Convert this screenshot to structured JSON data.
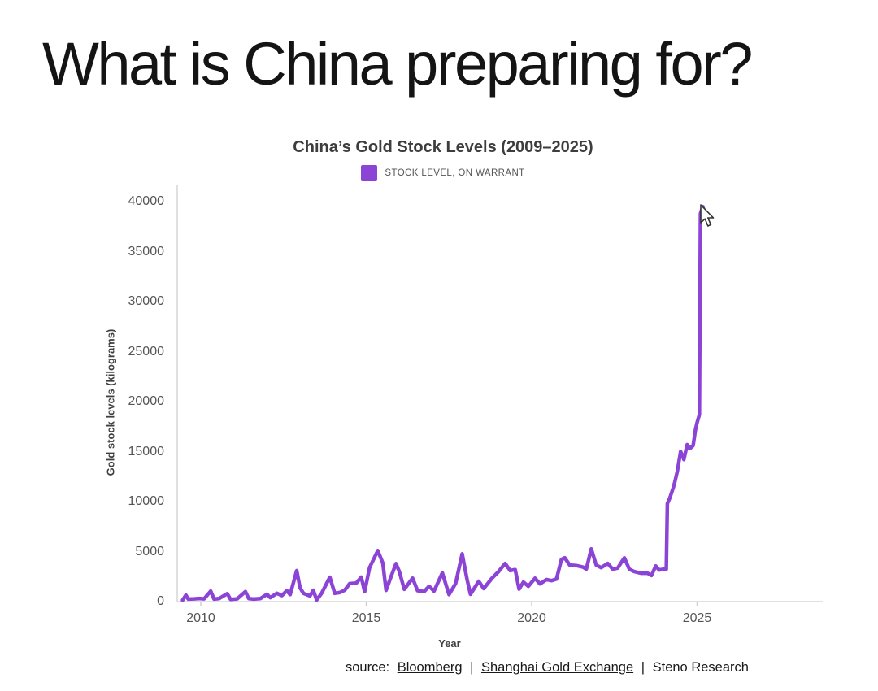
{
  "slide": {
    "title": "What is China preparing for?"
  },
  "chart": {
    "title": "China’s Gold Stock Levels (2009–2025)",
    "legend_label": "STOCK LEVEL, ON WARRANT",
    "x_axis_label": "Year",
    "y_axis_label": "Gold stock levels (kilograms)"
  },
  "chart_data": {
    "type": "line",
    "title": "China’s Gold Stock Levels (2009–2025)",
    "xlabel": "Year",
    "ylabel": "Gold stock levels (kilograms)",
    "series_name": "STOCK LEVEL, ON WARRANT",
    "line_color": "#8b44d6",
    "grid": false,
    "legend_position": "top-center",
    "x_ticks": [
      2010,
      2015,
      2020,
      2025
    ],
    "y_ticks": [
      0,
      5000,
      10000,
      15000,
      20000,
      25000,
      30000,
      35000,
      40000
    ],
    "xlim": [
      2009.3,
      2028.8
    ],
    "ylim": [
      0,
      40000
    ],
    "points": [
      [
        2009.45,
        150
      ],
      [
        2009.55,
        650
      ],
      [
        2009.62,
        250
      ],
      [
        2009.8,
        280
      ],
      [
        2009.95,
        320
      ],
      [
        2010.1,
        280
      ],
      [
        2010.3,
        1050
      ],
      [
        2010.4,
        250
      ],
      [
        2010.55,
        300
      ],
      [
        2010.8,
        800
      ],
      [
        2010.9,
        220
      ],
      [
        2011.1,
        280
      ],
      [
        2011.35,
        1000
      ],
      [
        2011.45,
        300
      ],
      [
        2011.6,
        250
      ],
      [
        2011.8,
        300
      ],
      [
        2012.0,
        730
      ],
      [
        2012.1,
        400
      ],
      [
        2012.3,
        830
      ],
      [
        2012.45,
        600
      ],
      [
        2012.6,
        1100
      ],
      [
        2012.7,
        700
      ],
      [
        2012.9,
        3100
      ],
      [
        2013.0,
        1380
      ],
      [
        2013.1,
        830
      ],
      [
        2013.3,
        570
      ],
      [
        2013.4,
        1140
      ],
      [
        2013.5,
        160
      ],
      [
        2013.65,
        830
      ],
      [
        2013.9,
        2440
      ],
      [
        2014.05,
        830
      ],
      [
        2014.2,
        900
      ],
      [
        2014.35,
        1140
      ],
      [
        2014.5,
        1800
      ],
      [
        2014.7,
        1850
      ],
      [
        2014.85,
        2450
      ],
      [
        2014.95,
        980
      ],
      [
        2015.1,
        3400
      ],
      [
        2015.35,
        5100
      ],
      [
        2015.5,
        3850
      ],
      [
        2015.6,
        1130
      ],
      [
        2015.75,
        2500
      ],
      [
        2015.9,
        3800
      ],
      [
        2016.0,
        3000
      ],
      [
        2016.15,
        1230
      ],
      [
        2016.4,
        2340
      ],
      [
        2016.55,
        1100
      ],
      [
        2016.75,
        1000
      ],
      [
        2016.9,
        1540
      ],
      [
        2017.05,
        1050
      ],
      [
        2017.3,
        2870
      ],
      [
        2017.5,
        700
      ],
      [
        2017.7,
        1800
      ],
      [
        2017.9,
        4770
      ],
      [
        2018.05,
        2180
      ],
      [
        2018.15,
        730
      ],
      [
        2018.4,
        2030
      ],
      [
        2018.55,
        1300
      ],
      [
        2018.8,
        2340
      ],
      [
        2019.0,
        3000
      ],
      [
        2019.2,
        3810
      ],
      [
        2019.35,
        3100
      ],
      [
        2019.5,
        3200
      ],
      [
        2019.62,
        1240
      ],
      [
        2019.75,
        1950
      ],
      [
        2019.9,
        1530
      ],
      [
        2020.1,
        2330
      ],
      [
        2020.25,
        1770
      ],
      [
        2020.45,
        2200
      ],
      [
        2020.6,
        2100
      ],
      [
        2020.75,
        2250
      ],
      [
        2020.9,
        4210
      ],
      [
        2021.0,
        4370
      ],
      [
        2021.15,
        3650
      ],
      [
        2021.35,
        3600
      ],
      [
        2021.55,
        3450
      ],
      [
        2021.65,
        3240
      ],
      [
        2021.8,
        5270
      ],
      [
        2021.95,
        3650
      ],
      [
        2022.1,
        3400
      ],
      [
        2022.3,
        3810
      ],
      [
        2022.45,
        3240
      ],
      [
        2022.6,
        3350
      ],
      [
        2022.8,
        4370
      ],
      [
        2022.95,
        3240
      ],
      [
        2023.1,
        3000
      ],
      [
        2023.3,
        2840
      ],
      [
        2023.5,
        2840
      ],
      [
        2023.62,
        2600
      ],
      [
        2023.75,
        3560
      ],
      [
        2023.85,
        3160
      ],
      [
        2024.0,
        3240
      ],
      [
        2024.07,
        3240
      ],
      [
        2024.1,
        9800
      ],
      [
        2024.18,
        10400
      ],
      [
        2024.28,
        11400
      ],
      [
        2024.33,
        12000
      ],
      [
        2024.4,
        13000
      ],
      [
        2024.5,
        15000
      ],
      [
        2024.6,
        14200
      ],
      [
        2024.7,
        15700
      ],
      [
        2024.78,
        15300
      ],
      [
        2024.88,
        15600
      ],
      [
        2024.95,
        17200
      ],
      [
        2025.0,
        17900
      ],
      [
        2025.07,
        18700
      ],
      [
        2025.1,
        38800
      ],
      [
        2025.17,
        39500
      ],
      [
        2025.2,
        39200
      ]
    ]
  },
  "source": {
    "prefix": "source:",
    "bloomberg": "Bloomberg",
    "separator1": "|",
    "shanghai_gold_exchange": "Shanghai Gold Exchange",
    "separator2": "|",
    "steno": "Steno Research"
  },
  "icons": {
    "cursor": "arrow-pointer"
  }
}
